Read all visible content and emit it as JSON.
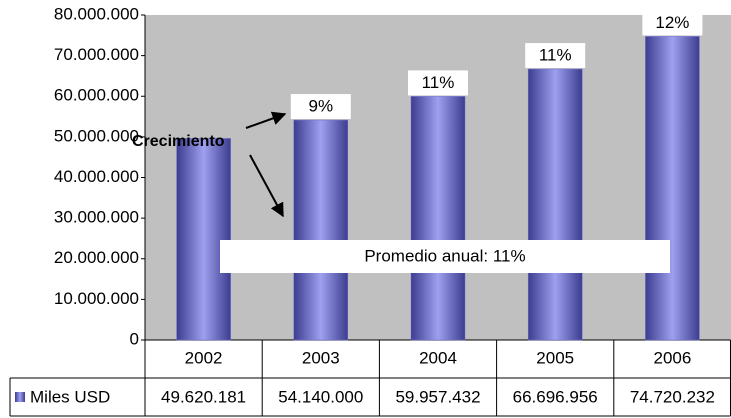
{
  "chart_data": {
    "type": "bar",
    "categories": [
      "2002",
      "2003",
      "2004",
      "2005",
      "2006"
    ],
    "series": [
      {
        "name": "Miles USD",
        "color": "#7070d0",
        "values": [
          49620181,
          54140000,
          59957432,
          66696956,
          74720232
        ],
        "value_labels": [
          "49.620.181",
          "54.140.000",
          "59.957.432",
          "66.696.956",
          "74.720.232"
        ]
      }
    ],
    "growth_labels": [
      null,
      "9%",
      "11%",
      "11%",
      "12%"
    ],
    "annotations": [
      "Crecimiento",
      "Promedio anual: 11%"
    ],
    "ylim": [
      0,
      80000000
    ],
    "yticks": [
      0,
      {
        "value": 10000000,
        "label": "10.000.000"
      },
      {
        "value": 20000000,
        "label": "20.000.000"
      },
      {
        "value": 30000000,
        "label": "30.000.000"
      },
      {
        "value": 40000000,
        "label": "40.000.000"
      },
      {
        "value": 50000000,
        "label": "50.000.000"
      },
      {
        "value": 60000000,
        "label": "60.000.000"
      },
      {
        "value": 70000000,
        "label": "70.000.000"
      },
      {
        "value": 80000000,
        "label": "80.000.000"
      }
    ],
    "grid": false,
    "plot_background": "#c0c0c0"
  }
}
